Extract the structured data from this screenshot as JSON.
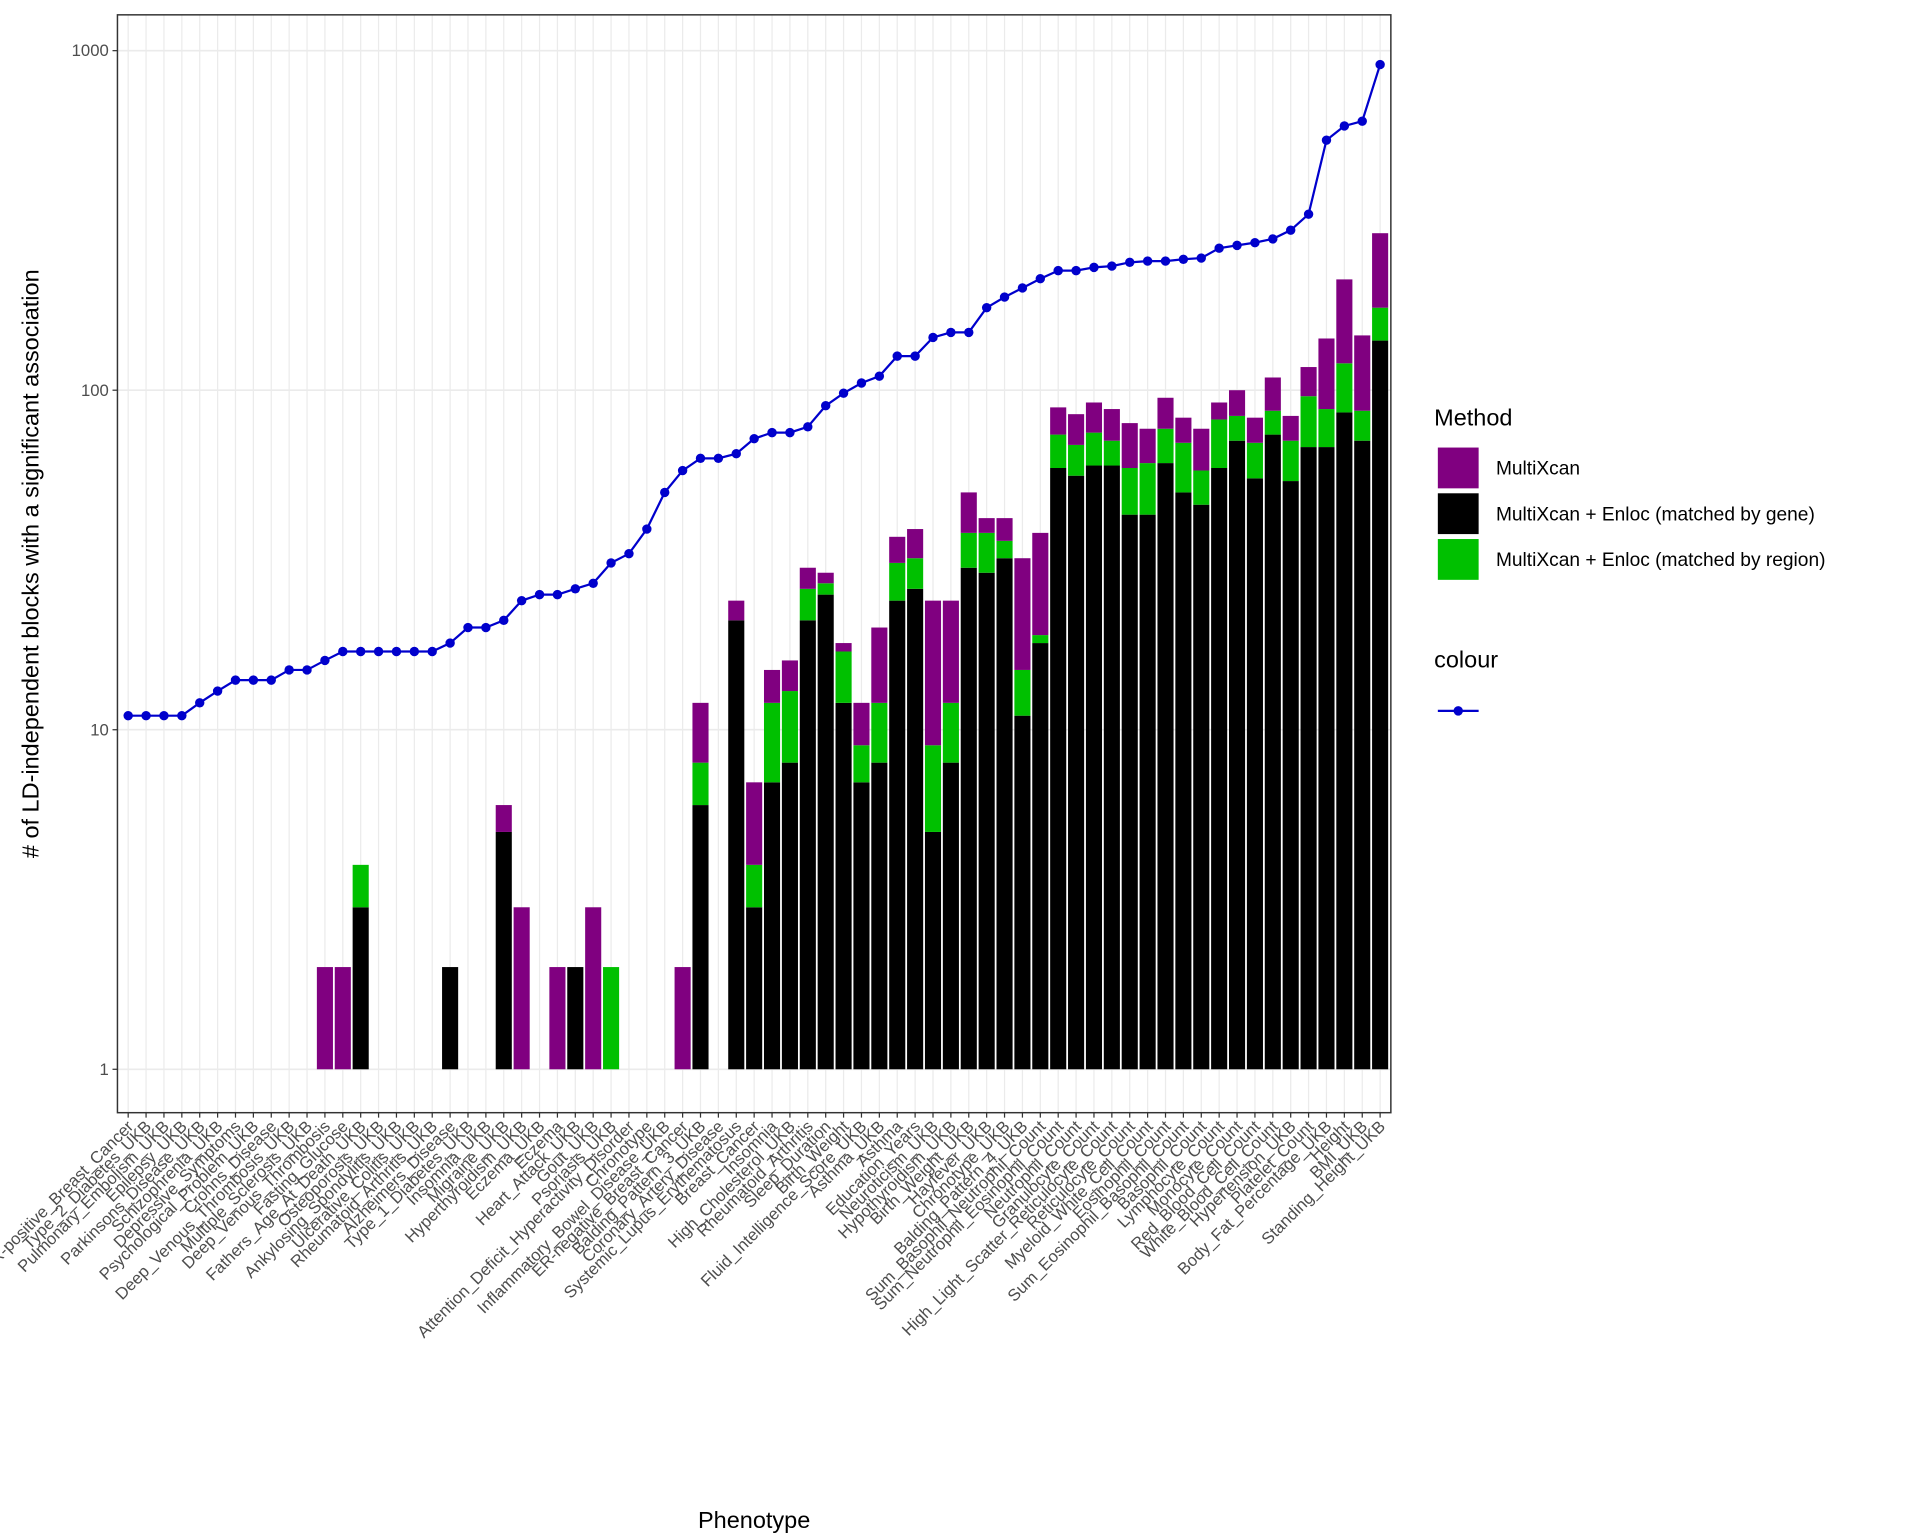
{
  "chart_data": {
    "type": "bar",
    "x_label": "Phenotype",
    "y_label": "# of LD-independent blocks with a significant association",
    "log_y": true,
    "grid": true,
    "legend_titles": [
      "Method",
      "colour"
    ],
    "legend_position": "right",
    "categories": [
      "ER-positive_Breast_Cancer",
      "Type_2_Diabetes_UKB",
      "Pulmonary_Embolism_UKB",
      "Epilepsy_UKB",
      "Parkinsons_Disease_UKB",
      "Schizophrenia_UKB",
      "Depressive_Symptoms",
      "Psychological_Problem_UKB",
      "Crohns_Disease",
      "Deep_Venous_Thrombosis_UKB",
      "Multiple_Sclerosis_UKB",
      "Deep_Venous_Thrombosis",
      "Fasting_Glucose",
      "Fathers_Age_At_Death_UKB",
      "Osteoporosis_UKB",
      "Ankylosing_Spondylitis_UKB",
      "Ulcerative_Colitis_UKB",
      "Rheumatoid_Arthritis_UKB",
      "Alzheimers_Disease",
      "Type_1_Diabetes_UKB",
      "Insomnia_UKB",
      "Migraine_UKB",
      "Hyperthyroidism_UKB",
      "Eczema_UKB",
      "Eczema",
      "Heart_Attack_UKB",
      "Gout_UKB",
      "Psoriasis_UKB",
      "Attention_Deficit_Hyperactivity_Disorder",
      "Chronotype",
      "Inflammatory_Bowel_Disease_UKB",
      "ER-negative_Breast_Cancer",
      "Balding_Pattern_3_UKB",
      "Coronary_Artery_Disease",
      "Systemic_Lupus_Erythematosus",
      "Breast_Cancer",
      "Insomnia",
      "High_Cholesterol_UKB",
      "Rheumatoid_Arthritis",
      "Sleep_Duration",
      "Birth_Weight",
      "Fluid_Intelligence_Score_UKB",
      "Asthma_UKB",
      "Asthma",
      "Education_Years",
      "Neuroticism_UKB",
      "Hypothyroidism_UKB",
      "Birth_Weight_UKB",
      "Hayfever_UKB",
      "Chronotype_UKB",
      "Balding_Pattern_4_UKB",
      "Sum_Basophil_Neutrophil_Count",
      "Sum_Neutrophil_Eosinophil_Count",
      "Neutrophil_Count",
      "Granulocyte_Count",
      "High_Light_Scatter_Reticulocyte_Count",
      "Reticulocyte_Count",
      "Myeloid_White_Cell_Count",
      "Eosinophil_Count",
      "Sum_Eosinophil_Basophil_Count",
      "Basophil_Count",
      "Lymphocyte_Count",
      "Monocyte_Count",
      "Red_Blood_Cell_Count",
      "White_Blood_Cell_Count",
      "Hypertension_UKB",
      "Platelet_Count",
      "Body_Fat_Percentage_UKB",
      "Height",
      "BMI_UKB",
      "Standing_Height_UKB"
    ],
    "series": [
      {
        "name": "MultiXcan",
        "color": "#800080",
        "values": [
          null,
          null,
          null,
          null,
          null,
          null,
          null,
          null,
          null,
          null,
          null,
          2,
          2,
          null,
          null,
          null,
          null,
          null,
          null,
          null,
          null,
          1,
          3,
          null,
          2,
          null,
          3,
          null,
          null,
          null,
          null,
          2,
          4,
          null,
          3,
          3,
          3,
          3,
          4,
          2,
          1,
          3,
          8,
          6,
          7,
          15,
          12,
          12,
          4,
          6,
          17,
          19,
          15,
          16,
          17,
          17,
          21,
          16,
          18,
          13,
          19,
          10,
          16,
          13,
          22,
          13,
          21,
          54,
          92,
          58,
          115
        ]
      },
      {
        "name": "MultiXcan + Enloc (matched by gene)",
        "color": "#000000",
        "values": [
          null,
          null,
          null,
          null,
          null,
          null,
          null,
          null,
          null,
          null,
          null,
          null,
          null,
          3,
          null,
          null,
          null,
          null,
          2,
          null,
          null,
          5,
          null,
          null,
          null,
          2,
          null,
          null,
          null,
          null,
          null,
          null,
          6,
          null,
          21,
          3,
          7,
          8,
          21,
          25,
          12,
          7,
          8,
          24,
          26,
          5,
          8,
          30,
          29,
          32,
          11,
          18,
          59,
          56,
          60,
          60,
          43,
          43,
          61,
          50,
          46,
          59,
          71,
          55,
          74,
          54,
          68,
          68,
          86,
          71,
          140
        ]
      },
      {
        "name": "MultiXcan + Enloc (matched by region)",
        "color": "#00c000",
        "values": [
          null,
          null,
          null,
          null,
          null,
          null,
          null,
          null,
          null,
          null,
          null,
          null,
          null,
          1,
          null,
          null,
          null,
          null,
          null,
          null,
          null,
          null,
          null,
          null,
          null,
          null,
          null,
          2,
          null,
          null,
          null,
          null,
          2,
          null,
          null,
          1,
          5,
          5,
          5,
          2,
          5,
          2,
          4,
          7,
          6,
          4,
          4,
          8,
          9,
          4,
          4,
          1,
          15,
          13,
          15,
          11,
          16,
          18,
          16,
          20,
          12,
          23,
          13,
          15,
          13,
          17,
          28,
          20,
          34,
          16,
          35
        ]
      },
      {
        "type": "line",
        "color": "#0000cc",
        "values": [
          11,
          11,
          11,
          11,
          12,
          13,
          14,
          14,
          14,
          15,
          15,
          16,
          17,
          17,
          17,
          17,
          17,
          17,
          18,
          20,
          20,
          21,
          24,
          25,
          25,
          26,
          27,
          31,
          33,
          39,
          50,
          58,
          63,
          63,
          65,
          72,
          75,
          75,
          78,
          90,
          98,
          105,
          110,
          126,
          126,
          143,
          148,
          148,
          175,
          188,
          200,
          213,
          225,
          225,
          230,
          232,
          238,
          240,
          240,
          243,
          245,
          262,
          267,
          272,
          279,
          296,
          330,
          545,
          600,
          620,
          910
        ]
      }
    ],
    "ylim": [
      0.745,
      1275
    ],
    "yticks": [
      1,
      10,
      100,
      1000
    ]
  }
}
